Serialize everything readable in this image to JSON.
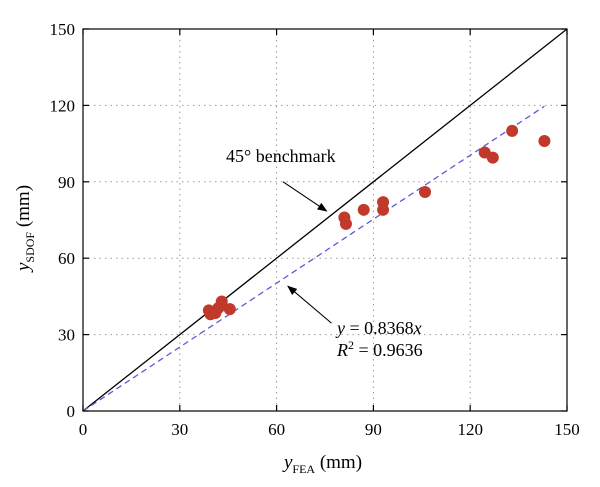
{
  "chart_data": {
    "type": "scatter",
    "xlim": [
      0,
      150
    ],
    "ylim": [
      0,
      150
    ],
    "xticks": [
      0,
      30,
      60,
      90,
      120,
      150
    ],
    "yticks": [
      0,
      30,
      60,
      90,
      120,
      150
    ],
    "grid": true,
    "xlabel": {
      "main": "y",
      "sub": "FEA",
      "unit": " (mm)"
    },
    "ylabel": {
      "main": "y",
      "sub": "SDOF",
      "unit": " (mm)"
    },
    "points": [
      {
        "x": 39,
        "y": 39.5
      },
      {
        "x": 39.5,
        "y": 38
      },
      {
        "x": 41,
        "y": 38.5
      },
      {
        "x": 42,
        "y": 40.5
      },
      {
        "x": 43,
        "y": 43
      },
      {
        "x": 45.5,
        "y": 40
      },
      {
        "x": 81,
        "y": 76
      },
      {
        "x": 81.5,
        "y": 73.5
      },
      {
        "x": 87,
        "y": 79
      },
      {
        "x": 93,
        "y": 82
      },
      {
        "x": 93,
        "y": 79
      },
      {
        "x": 106,
        "y": 86
      },
      {
        "x": 124.5,
        "y": 101.5
      },
      {
        "x": 127,
        "y": 99.5
      },
      {
        "x": 133,
        "y": 110
      },
      {
        "x": 143,
        "y": 106
      }
    ],
    "benchmark_line": {
      "x": [
        0,
        150
      ],
      "y": [
        0,
        150
      ],
      "label": "45° benchmark"
    },
    "fit_line": {
      "x": [
        0,
        143
      ],
      "y": [
        0,
        119.66
      ],
      "equation_lhs": "y",
      "equation_rhs": " = 0.8368",
      "equation_var": "x",
      "r2_lhs": "R",
      "r2_sup": "2",
      "r2_rhs": " = 0.9636"
    },
    "annotations": [
      {
        "target": "benchmark_line",
        "text_pos": [
          44,
          95
        ],
        "arrow_from": [
          62,
          90
        ],
        "arrow_to": [
          75.5,
          78.5
        ]
      },
      {
        "target": "fit_line",
        "text_pos": [
          79,
          30
        ],
        "arrow_from": [
          77,
          34.5
        ],
        "arrow_to": [
          63.5,
          49
        ]
      }
    ],
    "colors": {
      "points": "#c0392b",
      "benchmark": "#000000",
      "fit": "#5b5bd6",
      "grid": "#9a9a9a"
    }
  }
}
